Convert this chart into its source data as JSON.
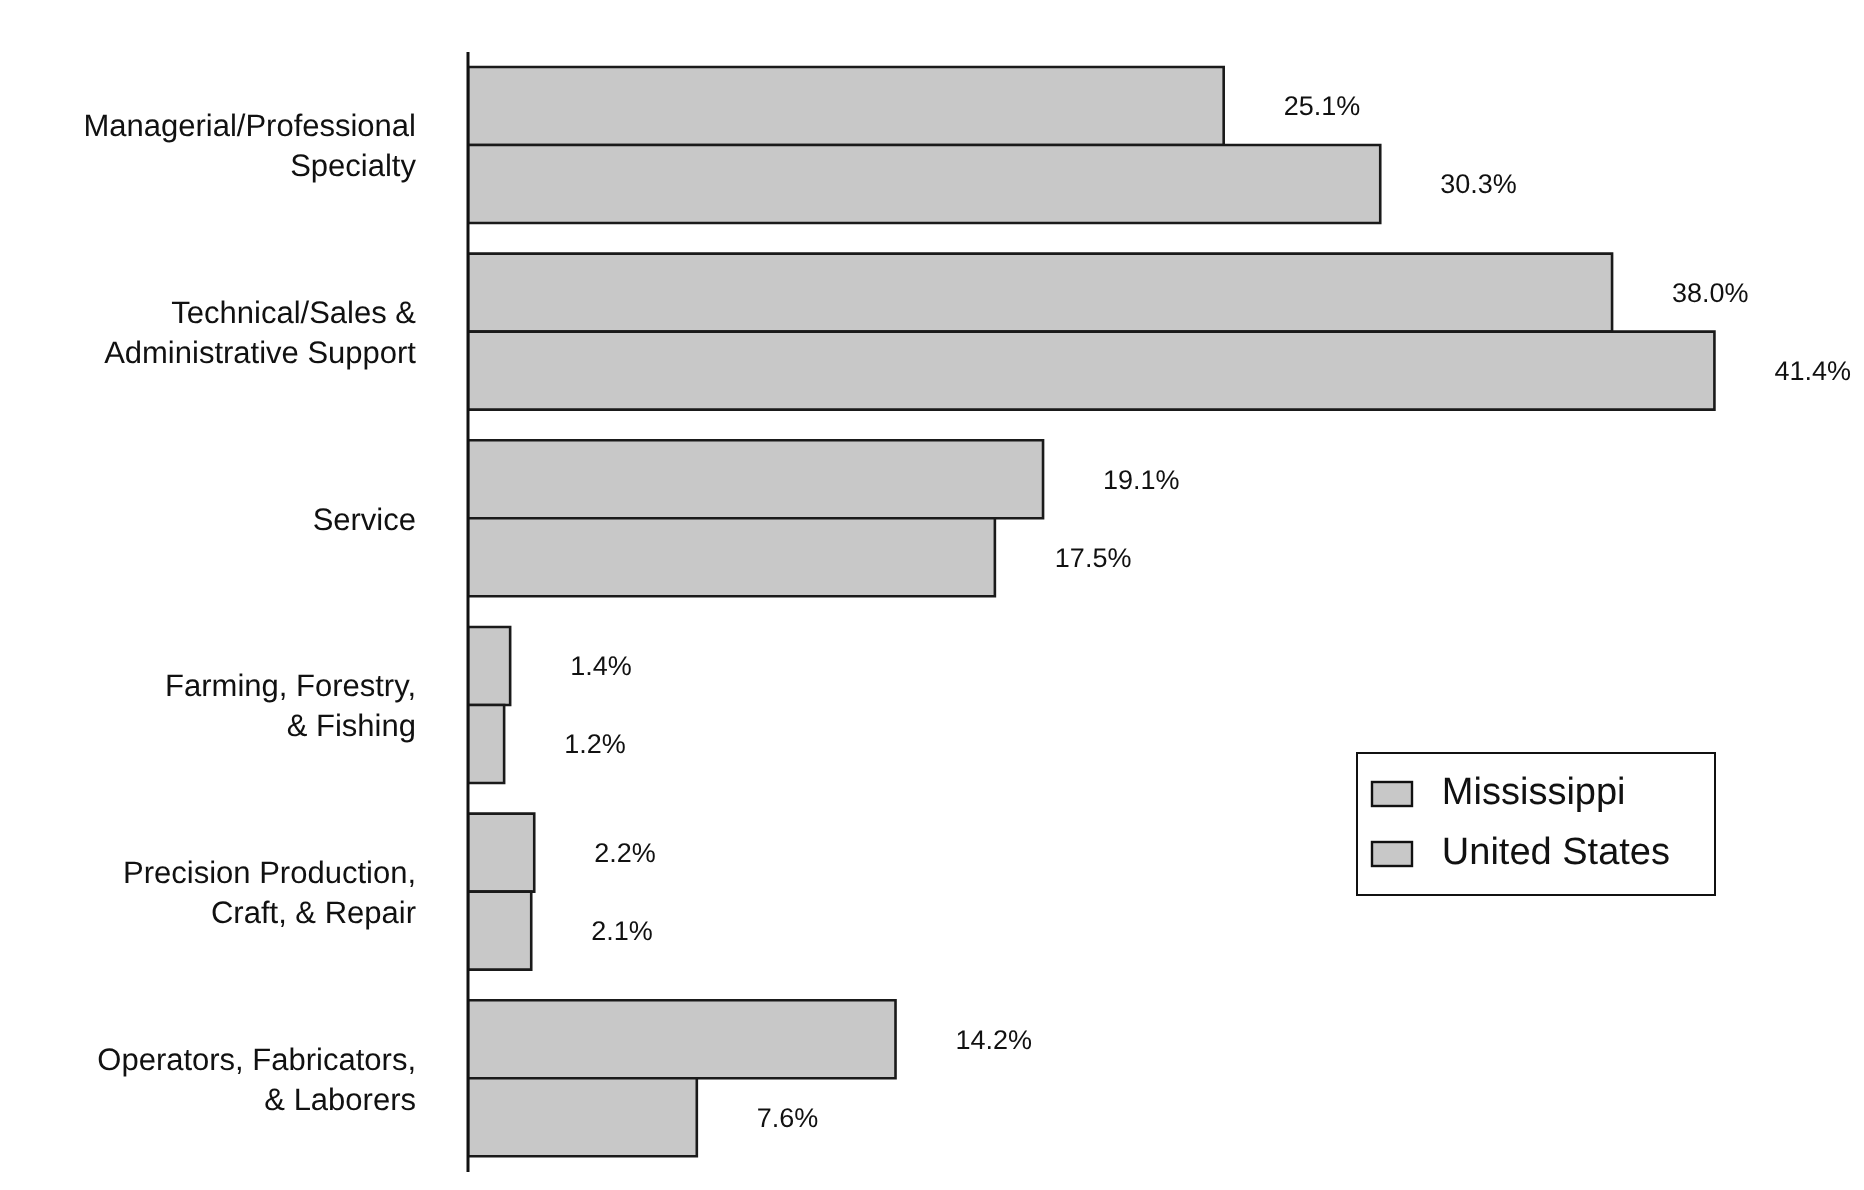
{
  "chart_data": {
    "type": "bar",
    "orientation": "horizontal",
    "categories": [
      "Managerial/Professional Specialty",
      "Technical/Sales & Administrative Support",
      "Service",
      "Farming, Forestry, & Fishing",
      "Precision Production, Craft, & Repair",
      "Operators, Fabricators, & Laborers"
    ],
    "series": [
      {
        "name": "Mississippi",
        "color": "#c8c8c8",
        "values": [
          25.1,
          38.0,
          19.1,
          1.4,
          2.2,
          14.2
        ],
        "value_labels": [
          "25.1%",
          "38.0%",
          "19.1%",
          "1.4%",
          "2.2%",
          "14.2%"
        ]
      },
      {
        "name": "United States",
        "color": "#c8c8c8",
        "values": [
          30.3,
          41.4,
          17.5,
          1.2,
          2.1,
          7.6
        ],
        "value_labels": [
          "30.3%",
          "41.4%",
          "17.5%",
          "1.2%",
          "2.1%",
          "7.6%"
        ]
      }
    ],
    "legend": "right",
    "tick_labels": "y"
  }
}
